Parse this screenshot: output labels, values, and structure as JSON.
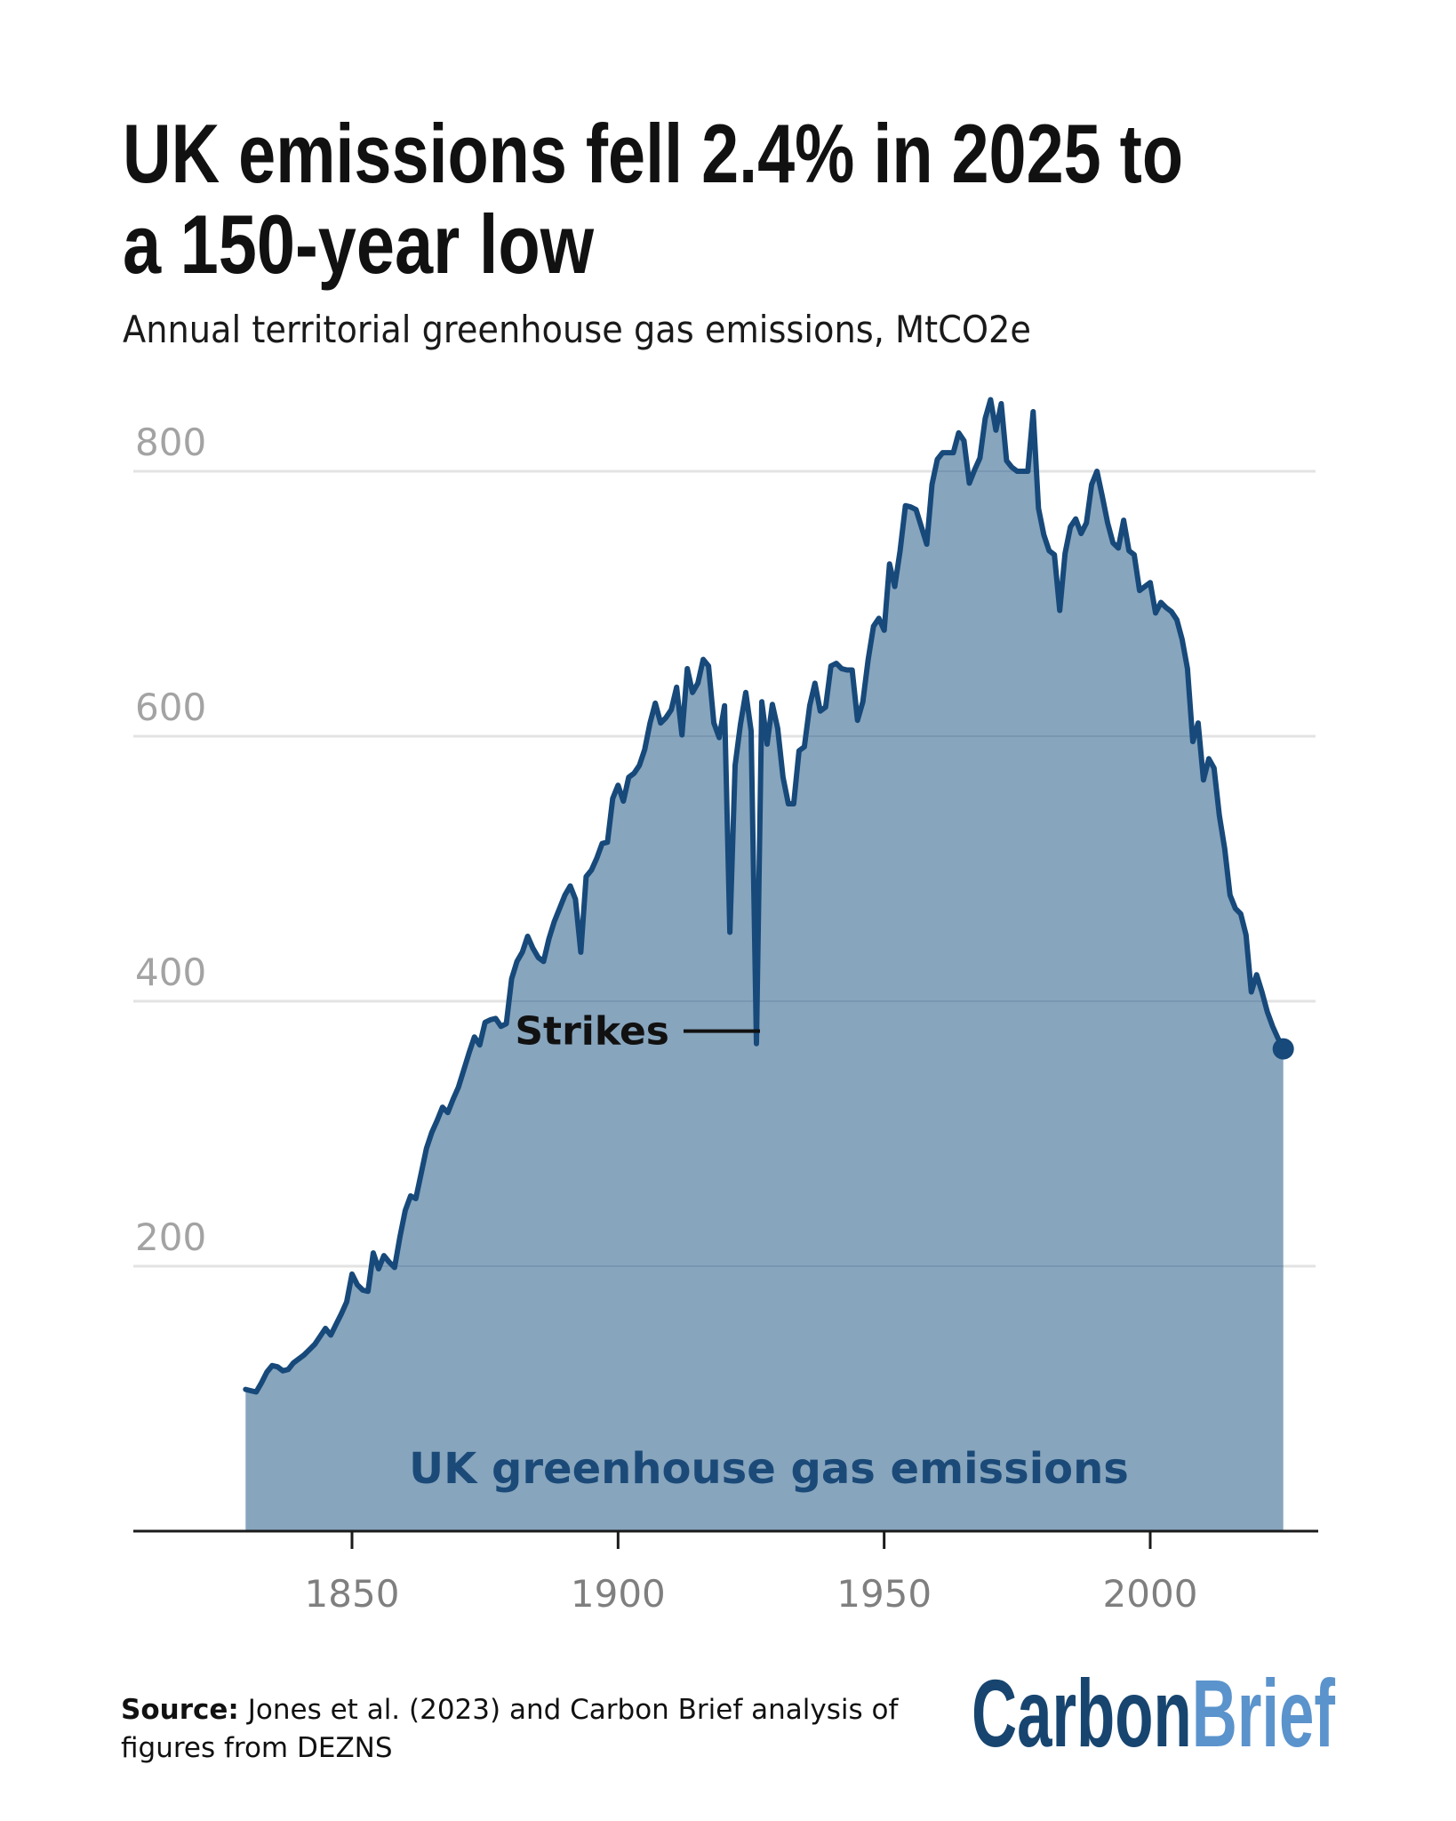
{
  "header": {
    "title_line1": "UK emissions fell 2.4% in 2025 to",
    "title_line2": "a 150-year low",
    "subtitle": "Annual territorial greenhouse gas emissions, MtCO2e"
  },
  "footer": {
    "source_label": "Source:",
    "source_line1": "Jones et al. (2023) and Carbon Brief analysis of",
    "source_line2": "figures from DEZNS",
    "logo_part1": "Carbon",
    "logo_part2": "Brief"
  },
  "colors": {
    "line": "#17497a",
    "area": "#87a5bd",
    "logo_dark": "#17456f",
    "logo_light": "#5b93cc"
  },
  "chart_data": {
    "type": "area",
    "title": "UK emissions fell 2.4% in 2025 to a 150-year low",
    "subtitle": "Annual territorial greenhouse gas emissions, MtCO2e",
    "xlabel": "",
    "ylabel": "MtCO2e",
    "xlim": [
      1810,
      2032
    ],
    "ylim": [
      0,
      800
    ],
    "grid": true,
    "x_ticks": [
      1850,
      1900,
      1950,
      2000
    ],
    "x_tick_labels": [
      "1850",
      "1900",
      "1950",
      "2000"
    ],
    "y_ticks": [
      200,
      400,
      600,
      800
    ],
    "y_tick_labels": [
      "200",
      "400",
      "600",
      "800"
    ],
    "series": [
      {
        "name": "UK greenhouse gas emissions",
        "start_year": 1830,
        "values": [
          107,
          106,
          105,
          112,
          120,
          125,
          124,
          121,
          122,
          127,
          130,
          133,
          137,
          141,
          147,
          153,
          148,
          156,
          164,
          173,
          194,
          186,
          182,
          181,
          210,
          198,
          208,
          203,
          199,
          222,
          242,
          253,
          251,
          270,
          289,
          301,
          310,
          320,
          316,
          326,
          335,
          348,
          361,
          373,
          367,
          384,
          386,
          387,
          381,
          383,
          417,
          430,
          437,
          449,
          440,
          433,
          430,
          447,
          460,
          470,
          480,
          487,
          477,
          437,
          494,
          499,
          508,
          519,
          520,
          553,
          563,
          551,
          569,
          572,
          578,
          590,
          610,
          625,
          610,
          614,
          620,
          637,
          601,
          651,
          633,
          640,
          658,
          653,
          610,
          599,
          623,
          452,
          578,
          609,
          633,
          604,
          368,
          626,
          594,
          624,
          606,
          569,
          549,
          549,
          589,
          592,
          623,
          640,
          619,
          622,
          653,
          655,
          651,
          650,
          650,
          612,
          626,
          658,
          683,
          689,
          680,
          730,
          713,
          740,
          774,
          773,
          771,
          758,
          745,
          790,
          809,
          814,
          814,
          814,
          829,
          823,
          791,
          801,
          810,
          840,
          854,
          831,
          851,
          808,
          803,
          800,
          800,
          800,
          845,
          772,
          752,
          740,
          737,
          695,
          738,
          758,
          764,
          753,
          761,
          790,
          800,
          781,
          761,
          746,
          742,
          763,
          740,
          737,
          710,
          713,
          716,
          693,
          701,
          697,
          694,
          688,
          673,
          651,
          596,
          610,
          567,
          583,
          576,
          540,
          515,
          480,
          470,
          466,
          450,
          407,
          420,
          407,
          392,
          381,
          372,
          364
        ]
      }
    ],
    "end_marker": {
      "year": 2025,
      "value": 364
    },
    "annotations": [
      {
        "text": "Strikes",
        "year": 1926,
        "value": 368
      }
    ],
    "series_label": "UK greenhouse gas emissions"
  }
}
